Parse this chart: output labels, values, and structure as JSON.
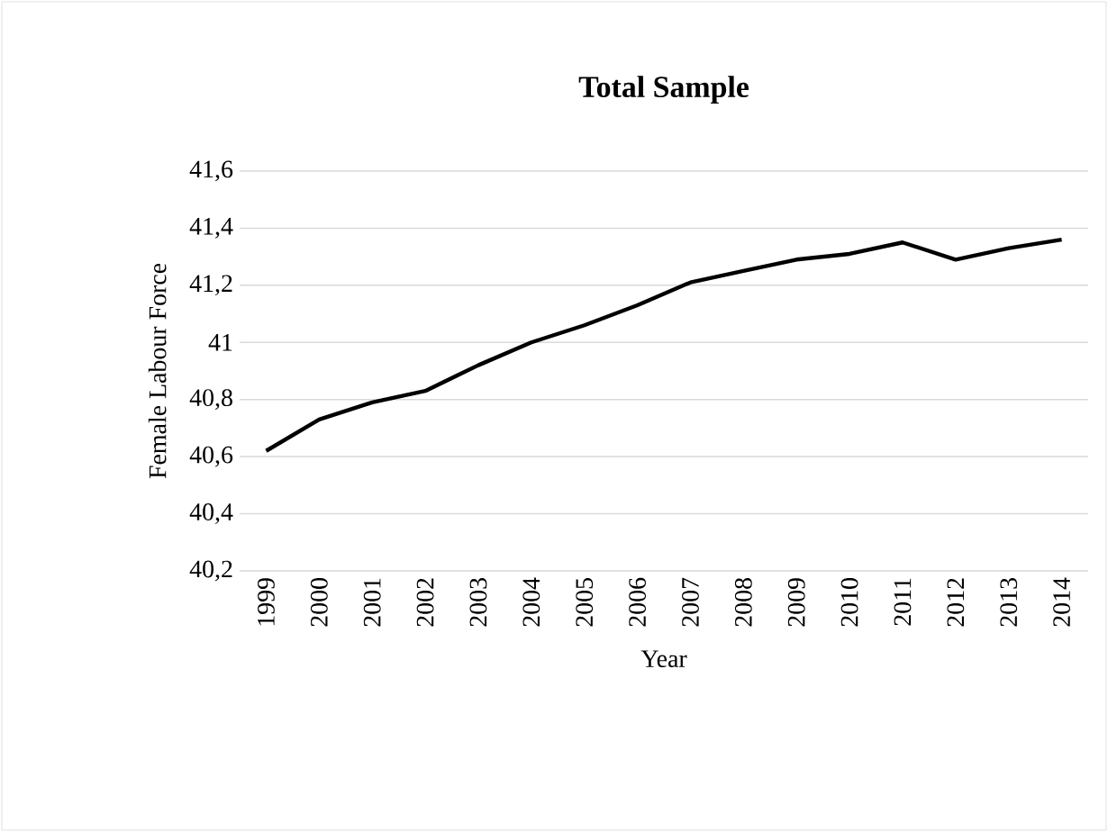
{
  "chart_data": {
    "type": "line",
    "title": "Total Sample",
    "xlabel": "Year",
    "ylabel": "Female Labour Force",
    "categories": [
      "1999",
      "2000",
      "2001",
      "2002",
      "2003",
      "2004",
      "2005",
      "2006",
      "2007",
      "2008",
      "2009",
      "2010",
      "2011",
      "2012",
      "2013",
      "2014"
    ],
    "series": [
      {
        "color": "#000000",
        "values": [
          40.62,
          40.73,
          40.79,
          40.83,
          40.92,
          41.0,
          41.06,
          41.13,
          41.21,
          41.25,
          41.29,
          41.31,
          41.35,
          41.29,
          41.33,
          41.36
        ]
      }
    ],
    "ylim": [
      40.2,
      41.6
    ],
    "yticks": [
      {
        "value": 40.2,
        "label": "40,2"
      },
      {
        "value": 40.4,
        "label": "40,4"
      },
      {
        "value": 40.6,
        "label": "40,6"
      },
      {
        "value": 40.8,
        "label": "40,8"
      },
      {
        "value": 41,
        "label": "41"
      },
      {
        "value": 41.2,
        "label": "41,2"
      },
      {
        "value": 41.4,
        "label": "41,4"
      },
      {
        "value": 41.6,
        "label": "41,6"
      }
    ],
    "grid": "y",
    "marker": "none",
    "line_style": "solid"
  }
}
